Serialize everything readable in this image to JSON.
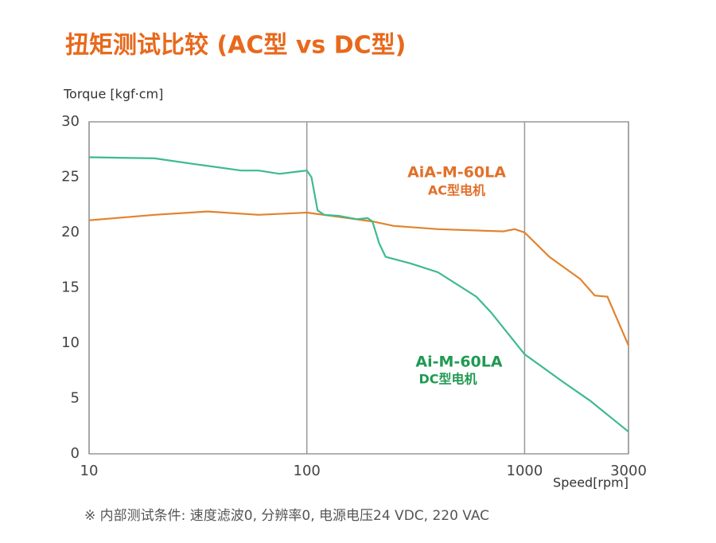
{
  "chart_data": {
    "type": "line",
    "title": "扭矩测试比较 (AC型 vs DC型)",
    "y_label": "Torque [kgf·cm]",
    "x_label": "Speed[rpm]",
    "footnote": "※ 内部测试条件: 速度滤波0, 分辨率0, 电源电压24 VDC, 220 VAC",
    "x_scale": "log",
    "grid": "x",
    "xlim": [
      10,
      3000
    ],
    "xticks": [
      10,
      100,
      1000,
      3000
    ],
    "ylim": [
      0,
      30
    ],
    "yticks": [
      0,
      5,
      10,
      15,
      20,
      25,
      30
    ],
    "series": [
      {
        "name": "AiA-M-60LA",
        "description": "AC型电机",
        "color": "#e2822f",
        "x": [
          10,
          20,
          35,
          60,
          100,
          130,
          200,
          250,
          400,
          800,
          900,
          1000,
          1300,
          1800,
          2100,
          2400,
          3000
        ],
        "values": [
          21.1,
          21.6,
          21.9,
          21.6,
          21.8,
          21.5,
          21.0,
          20.6,
          20.3,
          20.1,
          20.3,
          20.0,
          17.8,
          15.8,
          14.3,
          14.2,
          9.8
        ]
      },
      {
        "name": "Ai-M-60LA",
        "description": "DC型电机",
        "color": "#3dbb8c",
        "x": [
          10,
          20,
          30,
          50,
          60,
          75,
          90,
          100,
          105,
          112,
          120,
          140,
          170,
          190,
          200,
          215,
          230,
          300,
          400,
          600,
          700,
          1000,
          1500,
          2000,
          3000
        ],
        "values": [
          26.8,
          26.7,
          26.2,
          25.6,
          25.6,
          25.3,
          25.5,
          25.6,
          25.0,
          22.0,
          21.6,
          21.5,
          21.2,
          21.3,
          21.0,
          19.0,
          17.8,
          17.2,
          16.4,
          14.2,
          12.8,
          9.0,
          6.5,
          4.8,
          2.0
        ]
      }
    ]
  }
}
